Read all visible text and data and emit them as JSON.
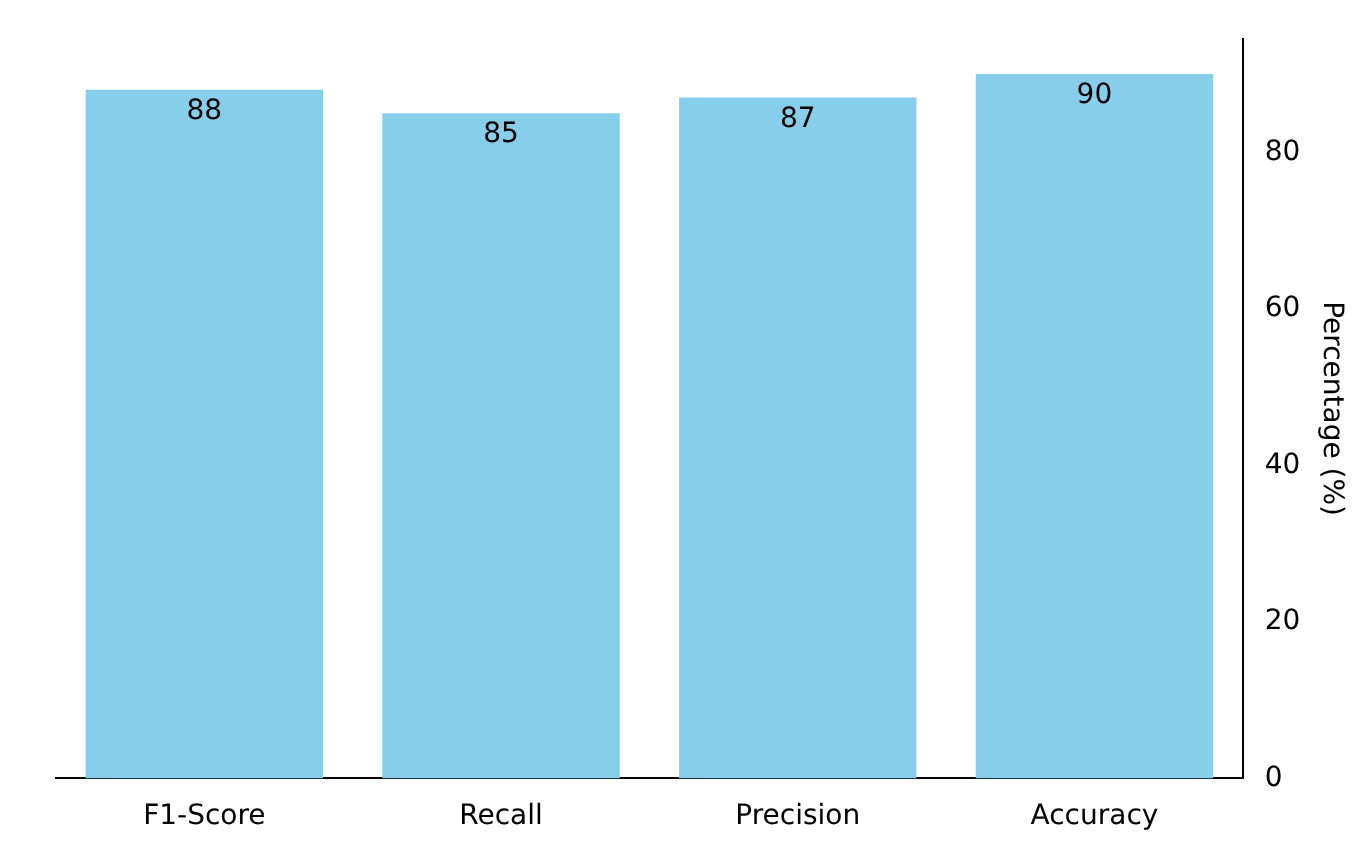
{
  "chart_data": {
    "type": "bar",
    "ylabel": "Percentage (%)",
    "categories": [
      "F1-Score",
      "Recall",
      "Precision",
      "Accuracy"
    ],
    "values": [
      88,
      85,
      87,
      90
    ],
    "color": "#87ceeb",
    "ylim": [
      0,
      94.5
    ],
    "yticks": [
      0,
      20,
      40,
      60,
      80
    ],
    "data_labels": true,
    "grid": false,
    "legend": false
  }
}
